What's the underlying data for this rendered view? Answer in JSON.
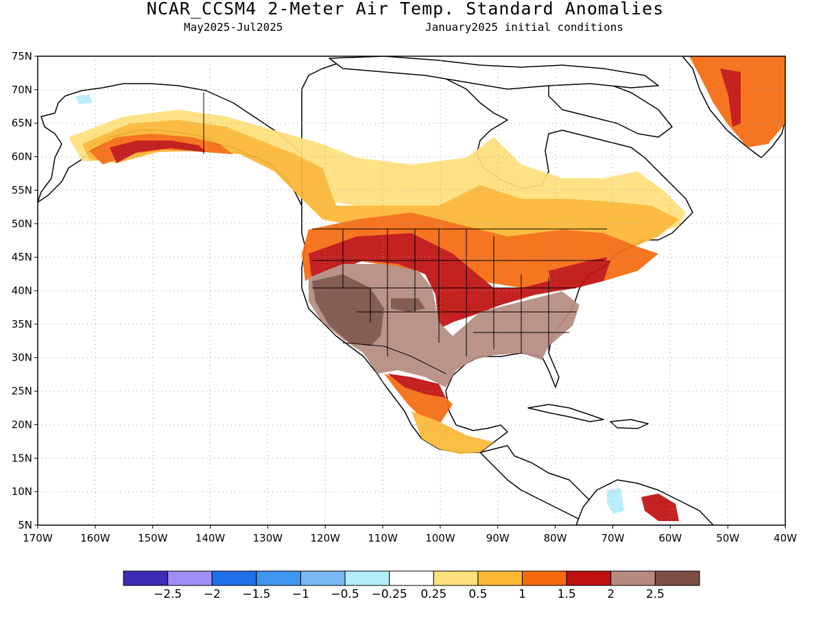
{
  "header": {
    "title": "NCAR_CCSM4 2-Meter Air Temp. Standard Anomalies",
    "period": "May2025-Jul2025",
    "init": "January2025 initial conditions"
  },
  "map": {
    "lat_labels": [
      "75N",
      "70N",
      "65N",
      "60N",
      "55N",
      "50N",
      "45N",
      "40N",
      "35N",
      "30N",
      "25N",
      "20N",
      "15N",
      "10N",
      "5N"
    ],
    "lon_labels": [
      "170W",
      "160W",
      "150W",
      "140W",
      "130W",
      "120W",
      "110W",
      "100W",
      "90W",
      "80W",
      "70W",
      "60W",
      "50W",
      "40W"
    ],
    "lat_range": [
      5,
      75
    ],
    "lon_range": [
      -170,
      -40
    ],
    "grid": "dotted"
  },
  "colorbar": {
    "colors": [
      "#3c2db4",
      "#a08cf5",
      "#1f6fe8",
      "#3f96ee",
      "#78b8f5",
      "#b4ecfa",
      "#ffffff",
      "#ffe07c",
      "#fcb734",
      "#f56a0f",
      "#c00f0f",
      "#b58a7f",
      "#7a5045"
    ],
    "labels": [
      "-2.5",
      "-2",
      "-1.5",
      "-1",
      "-0.5",
      "-0.25",
      "0.25",
      "0.5",
      "1",
      "1.5",
      "2",
      "2.5"
    ]
  }
}
